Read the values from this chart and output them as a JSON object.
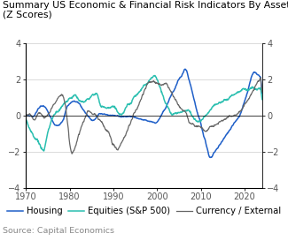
{
  "title_line1": "Summary US Economic & Financial Risk Indicators By Asset Class",
  "title_line2": "(Z Scores)",
  "source": "Source: Capital Economics",
  "xlim": [
    1970,
    2024
  ],
  "ylim": [
    -4,
    4
  ],
  "yticks": [
    -4,
    -2,
    0,
    2,
    4
  ],
  "xticks": [
    1970,
    1980,
    1990,
    2000,
    2010,
    2020
  ],
  "housing_color": "#1f5fc8",
  "equities_color": "#2bbfb0",
  "currency_color": "#666666",
  "legend_labels": [
    "Housing",
    "Equities (S&P 500)",
    "Currency / External"
  ],
  "title_fontsize": 7.8,
  "axis_fontsize": 7.0,
  "legend_fontsize": 7.2,
  "source_fontsize": 6.8
}
